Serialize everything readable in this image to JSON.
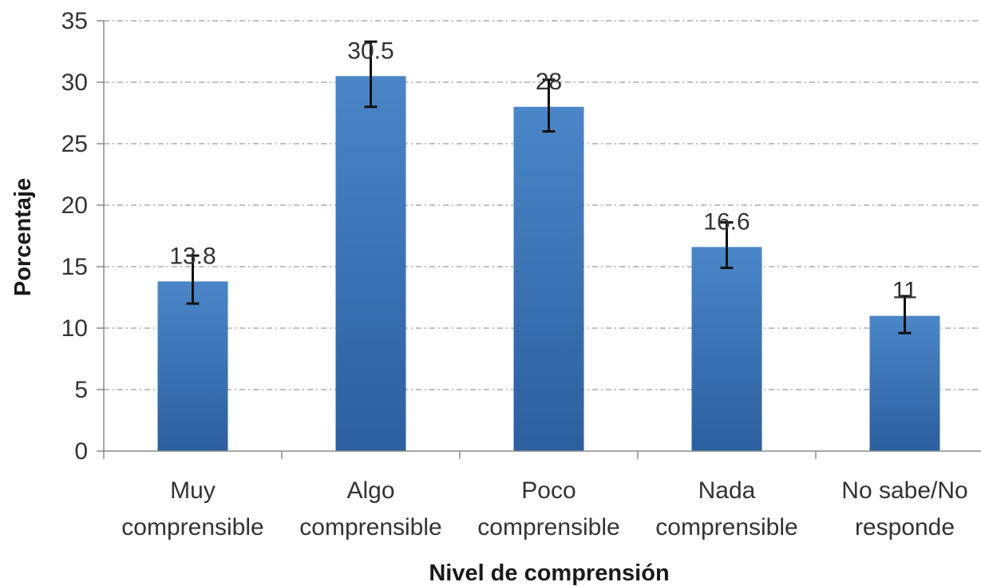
{
  "chart_data": {
    "type": "bar",
    "title": "",
    "xlabel": "Nivel de comprensión",
    "ylabel": "Porcentaje",
    "ylim": [
      0,
      35
    ],
    "yticks": [
      0,
      5,
      10,
      15,
      20,
      25,
      30,
      35
    ],
    "categories": [
      [
        "Muy",
        "comprensible"
      ],
      [
        "Algo",
        "comprensible"
      ],
      [
        "Poco",
        "comprensible"
      ],
      [
        "Nada",
        "comprensible"
      ],
      [
        "No sabe/No",
        "responde"
      ]
    ],
    "values": [
      13.8,
      30.5,
      28,
      16.6,
      11
    ],
    "value_labels": [
      "13.8",
      "30.5",
      "28",
      "16.6",
      "11"
    ],
    "error_low": [
      12.0,
      28.0,
      26.0,
      14.9,
      9.6
    ],
    "error_high": [
      15.9,
      33.3,
      30.2,
      18.6,
      12.6
    ],
    "grid": true,
    "legend": "none",
    "colors": {
      "bar_top": "#4a86c8",
      "bar_bottom": "#2c5f9e",
      "error_bar": "#111111"
    }
  }
}
